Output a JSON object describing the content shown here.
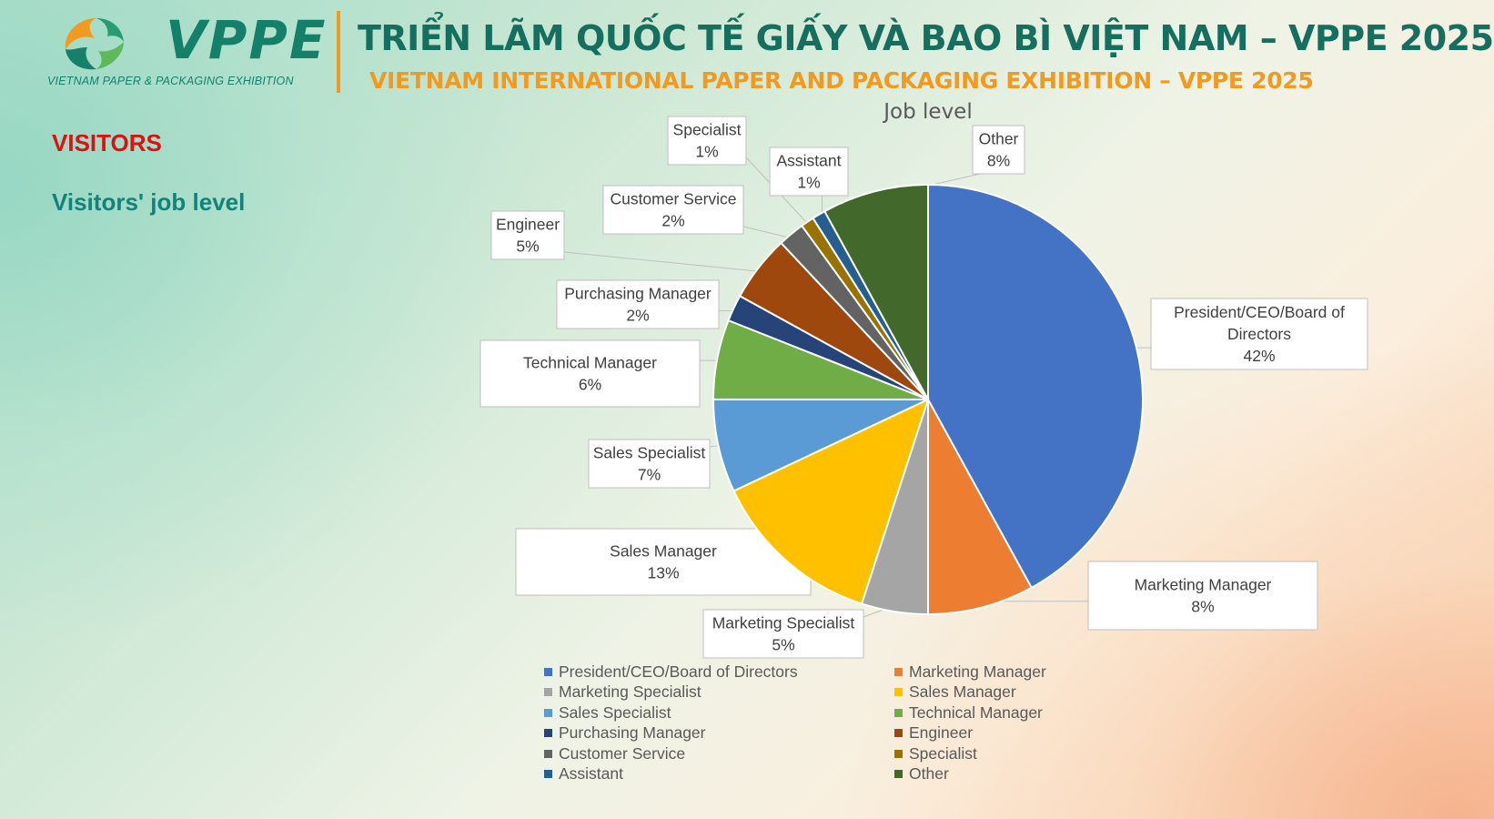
{
  "header": {
    "logo_text": "VPPE",
    "logo_subtitle": "VIETNAM PAPER & PACKAGING EXHIBITION",
    "title_vn": "TRIỂN LÃM QUỐC TẾ GIẤY VÀ BAO BÌ VIỆT NAM – VPPE 2025",
    "title_en": "VIETNAM INTERNATIONAL  PAPER AND PACKAGING EXHIBITION – VPPE 2025"
  },
  "section": {
    "visitors": "VISITORS",
    "heading": "Visitors' job level"
  },
  "colors": {
    "visitors_red": "#e01010",
    "heading_teal": "#14817a",
    "accent_orange": "#f29a1f",
    "brand_green": "#166e5f"
  },
  "chart_data": {
    "type": "pie",
    "title": "Job level",
    "legend_position": "bottom",
    "unit": "%",
    "slices": [
      {
        "label": "President/CEO/Board of Directors",
        "value": 42,
        "color": "#4472c4",
        "callout": [
          "President/CEO/Board of",
          "Directors",
          "42%"
        ]
      },
      {
        "label": "Marketing Manager",
        "value": 8,
        "color": "#ed7d31",
        "callout": [
          "Marketing Manager",
          "8%"
        ]
      },
      {
        "label": "Marketing Specialist",
        "value": 5,
        "color": "#a5a5a5",
        "callout": [
          "Marketing Specialist",
          "5%"
        ]
      },
      {
        "label": "Sales Manager",
        "value": 13,
        "color": "#ffc000",
        "callout": [
          "Sales Manager",
          "13%"
        ]
      },
      {
        "label": "Sales Specialist",
        "value": 7,
        "color": "#5b9bd5",
        "callout": [
          "Sales Specialist",
          "7%"
        ]
      },
      {
        "label": "Technical Manager",
        "value": 6,
        "color": "#70ad47",
        "callout": [
          "Technical Manager",
          "6%"
        ]
      },
      {
        "label": "Purchasing Manager",
        "value": 2,
        "color": "#264478",
        "callout": [
          "Purchasing Manager",
          "2%"
        ]
      },
      {
        "label": "Engineer",
        "value": 5,
        "color": "#9e480e",
        "callout": [
          "Engineer",
          "5%"
        ]
      },
      {
        "label": "Customer Service",
        "value": 2,
        "color": "#636363",
        "callout": [
          "Customer Service",
          "2%"
        ]
      },
      {
        "label": "Specialist",
        "value": 1,
        "color": "#997300",
        "callout": [
          "Specialist",
          "1%"
        ]
      },
      {
        "label": "Assistant",
        "value": 1,
        "color": "#255e91",
        "callout": [
          "Assistant",
          "1%"
        ]
      },
      {
        "label": "Other",
        "value": 8,
        "color": "#43682b",
        "callout": [
          "Other",
          "8%"
        ]
      }
    ]
  }
}
